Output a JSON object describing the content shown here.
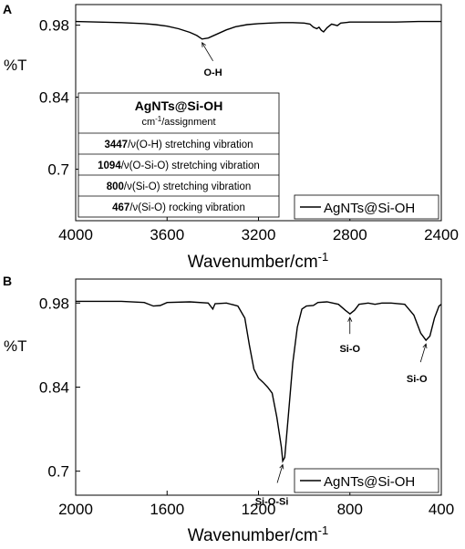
{
  "chart_data": [
    {
      "panel_label": "A",
      "type": "line",
      "xlabel": "Wavenumber/cm",
      "xlabel_sup": "-1",
      "ylabel": "%T",
      "x_reversed": true,
      "xlim": [
        4000,
        2400
      ],
      "ylim": [
        0.6,
        1.02
      ],
      "xticks": [
        4000,
        3600,
        3200,
        2800,
        2400
      ],
      "yticks": [
        0.98,
        0.84,
        0.7
      ],
      "ytick_labels": [
        "0.98",
        "0.84",
        "0.7"
      ],
      "legend": "AgNTs@Si-OH",
      "legend_position": "bottom-right",
      "series": [
        {
          "name": "AgNTs@Si-OH",
          "points": [
            [
              4000,
              0.987
            ],
            [
              3900,
              0.986
            ],
            [
              3800,
              0.985
            ],
            [
              3700,
              0.983
            ],
            [
              3650,
              0.981
            ],
            [
              3600,
              0.978
            ],
            [
              3550,
              0.973
            ],
            [
              3500,
              0.966
            ],
            [
              3470,
              0.96
            ],
            [
              3447,
              0.953
            ],
            [
              3420,
              0.955
            ],
            [
              3380,
              0.963
            ],
            [
              3340,
              0.971
            ],
            [
              3300,
              0.977
            ],
            [
              3250,
              0.981
            ],
            [
              3200,
              0.983
            ],
            [
              3150,
              0.984
            ],
            [
              3100,
              0.985
            ],
            [
              3050,
              0.985
            ],
            [
              3000,
              0.984
            ],
            [
              2975,
              0.982
            ],
            [
              2960,
              0.976
            ],
            [
              2945,
              0.973
            ],
            [
              2935,
              0.976
            ],
            [
              2925,
              0.97
            ],
            [
              2915,
              0.967
            ],
            [
              2900,
              0.975
            ],
            [
              2880,
              0.982
            ],
            [
              2855,
              0.979
            ],
            [
              2840,
              0.984
            ],
            [
              2800,
              0.986
            ],
            [
              2700,
              0.986
            ],
            [
              2600,
              0.986
            ],
            [
              2500,
              0.987
            ],
            [
              2400,
              0.987
            ]
          ]
        }
      ],
      "annotations": [
        {
          "text": "O-H",
          "x": 3447,
          "y": 0.953
        }
      ],
      "table": {
        "title": "AgNTs@Si-OH",
        "subtitle_prefix": "cm",
        "subtitle_sup": "-1",
        "subtitle_suffix": "/assignment",
        "rows": [
          {
            "num": "3447",
            "desc": "/ν(O-H) stretching vibration"
          },
          {
            "num": "1094",
            "desc": "/ν(O-Si-O) stretching vibration"
          },
          {
            "num": "800",
            "desc": "/ν(Si-O) stretching vibration"
          },
          {
            "num": "467",
            "desc": "/ν(Si-O) rocking vibration"
          }
        ]
      }
    },
    {
      "panel_label": "B",
      "type": "line",
      "xlabel": "Wavenumber/cm",
      "xlabel_sup": "-1",
      "ylabel": "%T",
      "x_reversed": true,
      "xlim": [
        2000,
        400
      ],
      "ylim": [
        0.66,
        1.02
      ],
      "xticks": [
        2000,
        1600,
        1200,
        800,
        400
      ],
      "yticks": [
        0.98,
        0.84,
        0.7
      ],
      "ytick_labels": [
        "0.98",
        "0.84",
        "0.7"
      ],
      "legend": "AgNTs@Si-OH",
      "legend_position": "bottom-right",
      "series": [
        {
          "name": "AgNTs@Si-OH",
          "points": [
            [
              2000,
              0.983
            ],
            [
              1800,
              0.983
            ],
            [
              1700,
              0.981
            ],
            [
              1660,
              0.975
            ],
            [
              1630,
              0.976
            ],
            [
              1600,
              0.981
            ],
            [
              1500,
              0.982
            ],
            [
              1420,
              0.98
            ],
            [
              1400,
              0.97
            ],
            [
              1390,
              0.979
            ],
            [
              1340,
              0.98
            ],
            [
              1290,
              0.975
            ],
            [
              1260,
              0.955
            ],
            [
              1240,
              0.91
            ],
            [
              1220,
              0.87
            ],
            [
              1200,
              0.855
            ],
            [
              1180,
              0.848
            ],
            [
              1160,
              0.84
            ],
            [
              1140,
              0.83
            ],
            [
              1120,
              0.79
            ],
            [
              1100,
              0.74
            ],
            [
              1094,
              0.717
            ],
            [
              1085,
              0.723
            ],
            [
              1070,
              0.79
            ],
            [
              1050,
              0.88
            ],
            [
              1030,
              0.94
            ],
            [
              1010,
              0.97
            ],
            [
              990,
              0.975
            ],
            [
              960,
              0.976
            ],
            [
              940,
              0.981
            ],
            [
              900,
              0.982
            ],
            [
              850,
              0.978
            ],
            [
              820,
              0.968
            ],
            [
              800,
              0.962
            ],
            [
              780,
              0.968
            ],
            [
              760,
              0.978
            ],
            [
              720,
              0.98
            ],
            [
              690,
              0.978
            ],
            [
              660,
              0.98
            ],
            [
              620,
              0.98
            ],
            [
              560,
              0.978
            ],
            [
              520,
              0.96
            ],
            [
              490,
              0.93
            ],
            [
              467,
              0.918
            ],
            [
              450,
              0.925
            ],
            [
              430,
              0.955
            ],
            [
              410,
              0.975
            ],
            [
              400,
              0.978
            ]
          ]
        }
      ],
      "annotations": [
        {
          "text": "Si-O-Si",
          "x": 1094,
          "y": 0.717
        },
        {
          "text": "Si-O",
          "x": 800,
          "y": 0.962
        },
        {
          "text": "Si-O",
          "x": 467,
          "y": 0.918
        }
      ]
    }
  ]
}
